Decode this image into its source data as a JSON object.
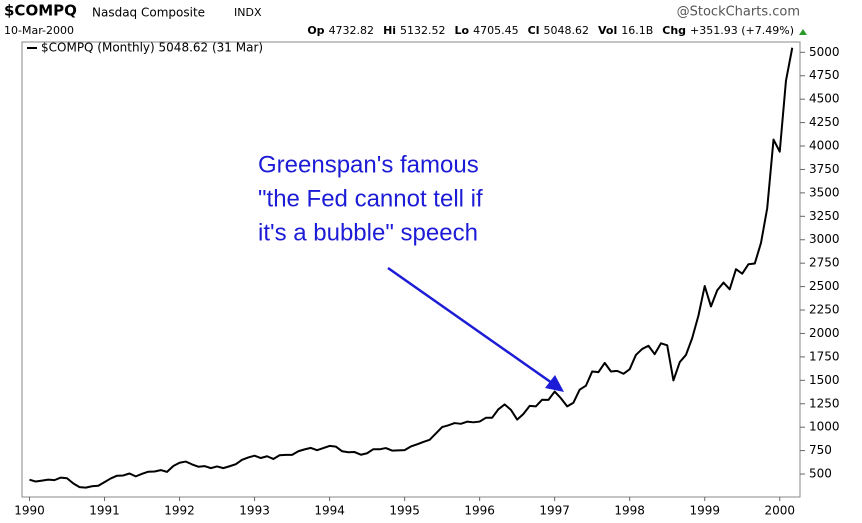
{
  "chart_data": {
    "type": "line",
    "symbol": "$COMPQ",
    "name": "Nasdaq Composite",
    "exchange": "INDX",
    "source": "@StockCharts.com",
    "date": "10-Mar-2000",
    "quote": [
      {
        "label": "Op",
        "value": 4732.82
      },
      {
        "label": "Hi",
        "value": 5132.52
      },
      {
        "label": "Lo",
        "value": 4705.45
      },
      {
        "label": "Cl",
        "value": 5048.62
      },
      {
        "label": "Vol",
        "value": "16.1B"
      },
      {
        "label": "Chg",
        "value": "+351.93 (+7.49%)"
      }
    ],
    "annotation": [
      "Greenspan's famous",
      "\"the Fed cannot tell if",
      "it's a bubble\" speech"
    ],
    "x": [
      1990.0,
      1990.083,
      1990.167,
      1990.25,
      1990.333,
      1990.417,
      1990.5,
      1990.583,
      1990.667,
      1990.75,
      1990.833,
      1990.917,
      1991.0,
      1991.083,
      1991.167,
      1991.25,
      1991.333,
      1991.417,
      1991.5,
      1991.583,
      1991.667,
      1991.75,
      1991.833,
      1991.917,
      1992.0,
      1992.083,
      1992.167,
      1992.25,
      1992.333,
      1992.417,
      1992.5,
      1992.583,
      1992.667,
      1992.75,
      1992.833,
      1992.917,
      1993.0,
      1993.083,
      1993.167,
      1993.25,
      1993.333,
      1993.417,
      1993.5,
      1993.583,
      1993.667,
      1993.75,
      1993.833,
      1993.917,
      1994.0,
      1994.083,
      1994.167,
      1994.25,
      1994.333,
      1994.417,
      1994.5,
      1994.583,
      1994.667,
      1994.75,
      1994.833,
      1994.917,
      1995.0,
      1995.083,
      1995.167,
      1995.25,
      1995.333,
      1995.417,
      1995.5,
      1995.583,
      1995.667,
      1995.75,
      1995.833,
      1995.917,
      1996.0,
      1996.083,
      1996.167,
      1996.25,
      1996.333,
      1996.417,
      1996.5,
      1996.583,
      1996.667,
      1996.75,
      1996.833,
      1996.917,
      1997.0,
      1997.083,
      1997.167,
      1997.25,
      1997.333,
      1997.417,
      1997.5,
      1997.583,
      1997.667,
      1997.75,
      1997.833,
      1997.917,
      1998.0,
      1998.083,
      1998.167,
      1998.25,
      1998.333,
      1998.417,
      1998.5,
      1998.583,
      1998.667,
      1998.75,
      1998.833,
      1998.917,
      1999.0,
      1999.083,
      1999.167,
      1999.25,
      1999.333,
      1999.417,
      1999.5,
      1999.583,
      1999.667,
      1999.75,
      1999.833,
      1999.917,
      2000.0,
      2000.083,
      2000.167
    ],
    "series": [
      {
        "name": "$COMPQ (Monthly) 5048.62 (31 Mar)",
        "color": "#000000",
        "values": [
          440,
          420,
          430,
          440,
          435,
          462,
          455,
          400,
          360,
          355,
          370,
          375,
          414,
          453,
          482,
          485,
          506,
          475,
          502,
          525,
          527,
          542,
          523,
          586,
          620,
          633,
          603,
          578,
          585,
          563,
          581,
          563,
          583,
          605,
          652,
          677,
          696,
          671,
          690,
          661,
          700,
          704,
          705,
          743,
          763,
          779,
          754,
          777,
          800,
          793,
          743,
          733,
          735,
          706,
          722,
          765,
          764,
          777,
          750,
          752,
          755,
          794,
          817,
          843,
          865,
          933,
          1001,
          1020,
          1044,
          1036,
          1059,
          1052,
          1060,
          1100,
          1101,
          1191,
          1243,
          1185,
          1081,
          1141,
          1227,
          1222,
          1293,
          1291,
          1380,
          1309,
          1222,
          1261,
          1400,
          1443,
          1594,
          1587,
          1686,
          1594,
          1601,
          1570,
          1619,
          1771,
          1835,
          1869,
          1779,
          1895,
          1873,
          1499,
          1694,
          1771,
          1950,
          2193,
          2506,
          2288,
          2461,
          2543,
          2471,
          2686,
          2638,
          2739,
          2746,
          2966,
          3336,
          4069,
          3940,
          4697,
          5048.62
        ]
      }
    ],
    "xlim": [
      1989.9,
      2000.27
    ],
    "xticks": [
      1990,
      1991,
      1992,
      1993,
      1994,
      1995,
      1996,
      1997,
      1998,
      1999,
      2000
    ],
    "ylim": [
      255,
      5110
    ],
    "yticks": [
      500,
      750,
      1000,
      1250,
      1500,
      1750,
      2000,
      2250,
      2500,
      2750,
      3000,
      3250,
      3500,
      3750,
      4000,
      4250,
      4500,
      4750,
      5000
    ],
    "grid": false
  }
}
